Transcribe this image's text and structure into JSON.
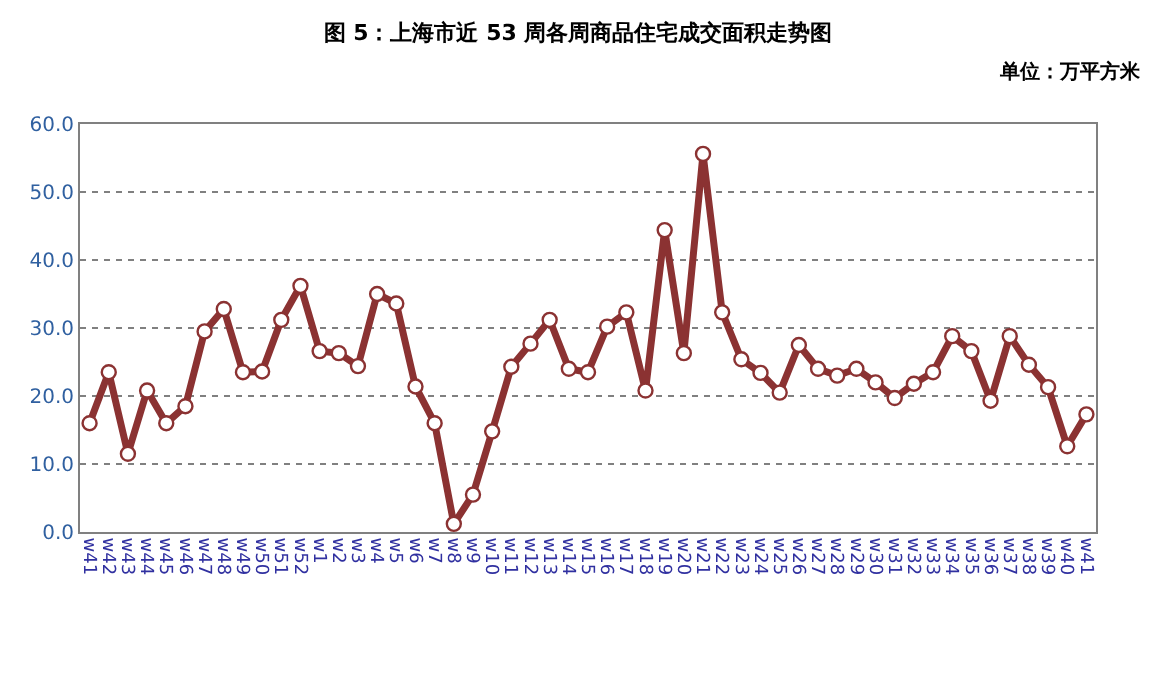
{
  "chart_data": {
    "type": "line",
    "title": "图 5：上海市近 53 周各周商品住宅成交面积走势图",
    "annotations": [
      "单位：万平方米"
    ],
    "categories": [
      "w41",
      "w42",
      "w43",
      "w44",
      "w45",
      "w46",
      "w47",
      "w48",
      "w49",
      "w50",
      "w51",
      "w52",
      "w1",
      "w2",
      "w3",
      "w4",
      "w5",
      "w6",
      "w7",
      "w8",
      "w9",
      "w10",
      "w11",
      "w12",
      "w13",
      "w14",
      "w15",
      "w16",
      "w17",
      "w18",
      "w19",
      "w20",
      "w21",
      "w22",
      "w23",
      "w24",
      "w25",
      "w26",
      "w27",
      "w28",
      "w29",
      "w30",
      "w31",
      "w32",
      "w33",
      "w34",
      "w35",
      "w36",
      "w37",
      "w38",
      "w39",
      "w40",
      "w41"
    ],
    "values": [
      16,
      23.5,
      11.5,
      20.8,
      16,
      18.5,
      29.5,
      32.8,
      23.5,
      23.6,
      31.2,
      36.2,
      26.6,
      26.3,
      24.4,
      35,
      33.6,
      21.4,
      16,
      1.2,
      5.5,
      14.8,
      24.3,
      27.7,
      31.2,
      24,
      23.5,
      30.2,
      32.3,
      20.8,
      44.4,
      26.3,
      55.6,
      32.3,
      25.4,
      23.4,
      20.5,
      27.5,
      24,
      23,
      24,
      22,
      19.7,
      21.8,
      23.5,
      28.8,
      26.6,
      19.3,
      28.8,
      24.6,
      21.3,
      12.6,
      17.3
    ],
    "color": "#8b3232",
    "ylim": [
      0,
      60
    ],
    "yticks": [
      {
        "value": 0,
        "label": "0.0"
      },
      {
        "value": 10,
        "label": "10.0"
      },
      {
        "value": 20,
        "label": "20.0"
      },
      {
        "value": 30,
        "label": "30.0"
      },
      {
        "value": 40,
        "label": "40.0"
      },
      {
        "value": 50,
        "label": "50.0"
      },
      {
        "value": 60,
        "label": "60.0"
      }
    ],
    "grid": "y",
    "marker": "circle",
    "line_style": "solid",
    "legend": false
  }
}
